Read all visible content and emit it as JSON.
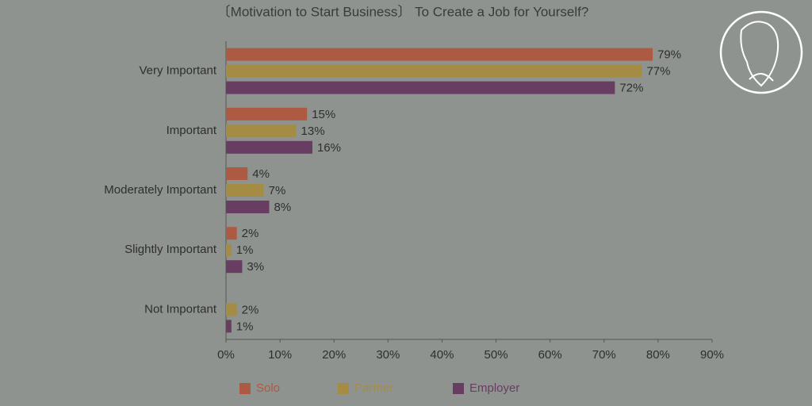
{
  "chart_data": {
    "type": "bar",
    "orientation": "horizontal",
    "title": "〔Motivation to Start Business〕 To Create a Job for Yourself?",
    "categories": [
      "Very Important",
      "Important",
      "Moderately Important",
      "Slightly Important",
      "Not Important"
    ],
    "series": [
      {
        "name": "Solo",
        "color": "#ad5a42",
        "values": [
          79,
          15,
          4,
          2,
          null
        ],
        "value_labels": [
          "79%",
          "15%",
          "4%",
          "2%",
          null
        ]
      },
      {
        "name": "Partner",
        "color": "#a58c44",
        "values": [
          77,
          13,
          7,
          1,
          2
        ],
        "value_labels": [
          "77%",
          "13%",
          "7%",
          "1%",
          "2%"
        ]
      },
      {
        "name": "Employer",
        "color": "#673d62",
        "values": [
          72,
          16,
          8,
          3,
          1
        ],
        "value_labels": [
          "72%",
          "16%",
          "8%",
          "3%",
          "1%"
        ]
      }
    ],
    "xlim": [
      0,
      90
    ],
    "xticks": [
      {
        "value": 0,
        "label": "0%"
      },
      {
        "value": 10,
        "label": "10%"
      },
      {
        "value": 20,
        "label": "20%"
      },
      {
        "value": 30,
        "label": "30%"
      },
      {
        "value": 40,
        "label": "40%"
      },
      {
        "value": 50,
        "label": "50%"
      },
      {
        "value": 60,
        "label": "60%"
      },
      {
        "value": 70,
        "label": "70%"
      },
      {
        "value": 80,
        "label": "80%"
      },
      {
        "value": 90,
        "label": "90%"
      }
    ],
    "legend": "bottom"
  }
}
